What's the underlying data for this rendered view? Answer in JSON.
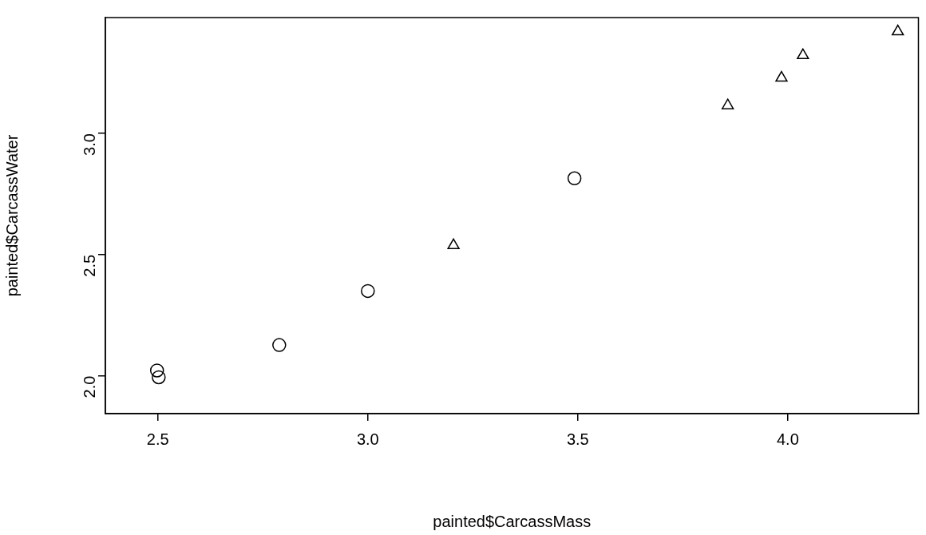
{
  "chart_data": {
    "type": "scatter",
    "xlabel": "painted$CarcassMass",
    "ylabel": "painted$CarcassWater",
    "xlim": [
      2.375,
      4.311
    ],
    "ylim": [
      1.844,
      3.478
    ],
    "xticks": [
      2.5,
      {
        "value": 3,
        "label": "3.0"
      },
      3.5,
      {
        "value": 4,
        "label": "4.0"
      }
    ],
    "yticks": [
      {
        "value": 2,
        "label": "2.0"
      },
      2.5,
      {
        "value": 3,
        "label": "3.0"
      }
    ],
    "grid": false,
    "legend": false,
    "series": [
      {
        "color": "#000000",
        "marker": "circle",
        "x": [
          2.498,
          2.502,
          2.789,
          3.0,
          3.492
        ],
        "values": [
          2.022,
          1.994,
          2.127,
          2.35,
          2.815
        ]
      },
      {
        "color": "#000000",
        "marker": "triangle",
        "x": [
          3.204,
          3.857,
          3.985,
          4.036,
          4.262
        ],
        "values": [
          2.538,
          3.115,
          3.229,
          3.322,
          3.42
        ]
      }
    ]
  }
}
